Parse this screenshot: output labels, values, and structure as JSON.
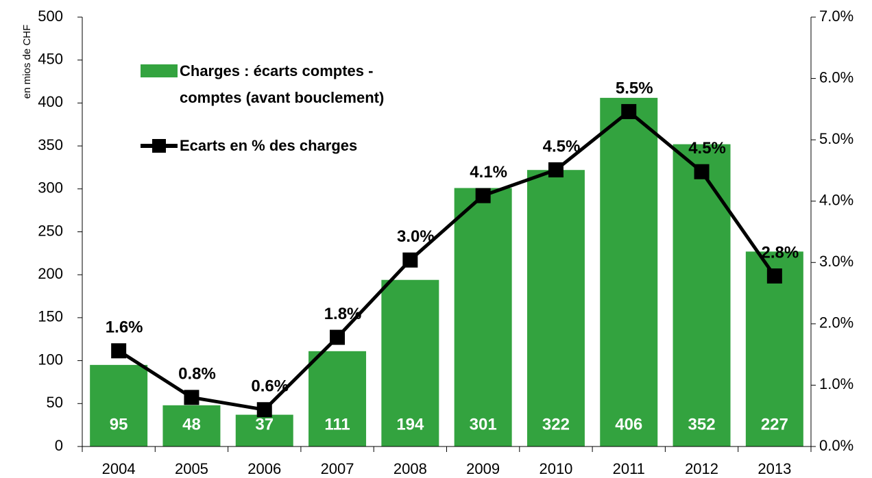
{
  "chart_data": {
    "type": "bar_line",
    "y_axis_label": "en mios de CHF",
    "categories": [
      "2004",
      "2005",
      "2006",
      "2007",
      "2008",
      "2009",
      "2010",
      "2011",
      "2012",
      "2013"
    ],
    "series": [
      {
        "name": "Charges : écarts comptes - comptes (avant bouclement)",
        "type": "bar",
        "color": "#33a33f",
        "values": [
          95,
          48,
          37,
          111,
          194,
          301,
          322,
          406,
          352,
          227
        ]
      },
      {
        "name": "Ecarts en % des charges",
        "type": "line",
        "axis": "y2",
        "color": "#000000",
        "values": [
          1.56,
          0.8,
          0.6,
          1.78,
          3.04,
          4.09,
          4.51,
          5.46,
          4.48,
          2.78
        ],
        "value_labels": [
          "1.6%",
          "0.8%",
          "0.6%",
          "1.8%",
          "3.0%",
          "4.1%",
          "4.5%",
          "5.5%",
          "4.5%",
          "2.8%"
        ]
      }
    ],
    "ylim": [
      0,
      500
    ],
    "yticks": [
      0,
      50,
      100,
      150,
      200,
      250,
      300,
      350,
      400,
      450,
      500
    ],
    "y2lim": [
      0,
      7
    ],
    "y2ticks": [
      {
        "value": 0,
        "label": "0.0%"
      },
      {
        "value": 1,
        "label": "1.0%"
      },
      {
        "value": 2,
        "label": "2.0%"
      },
      {
        "value": 3,
        "label": "3.0%"
      },
      {
        "value": 4,
        "label": "4.0%"
      },
      {
        "value": 5,
        "label": "5.0%"
      },
      {
        "value": 6,
        "label": "6.0%"
      },
      {
        "value": 7,
        "label": "7.0%"
      }
    ],
    "legend": "top-left",
    "grid": false
  }
}
